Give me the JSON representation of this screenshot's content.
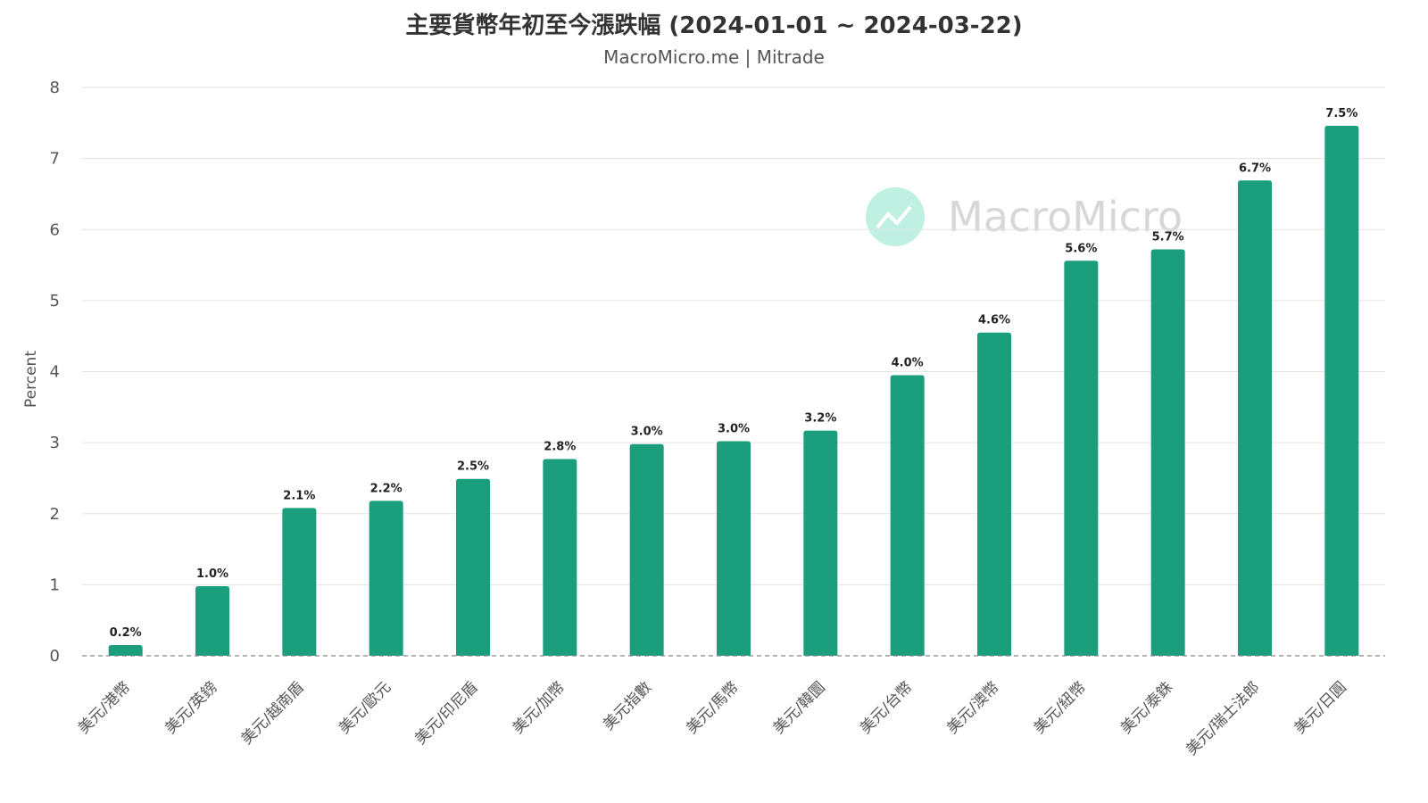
{
  "colors": {
    "bar": "#1a9e7c",
    "grid": "#e3e3e3",
    "baseline": "#888888",
    "watermark_circle": "#bff0e2"
  },
  "watermark": {
    "text": "MacroMicro",
    "icon": "chart-line-icon"
  },
  "chart_data": {
    "type": "bar",
    "title": "主要貨幣年初至今漲跌幅 (2024-01-01 ~ 2024-03-22)",
    "subtitle": "MacroMicro.me | Mitrade",
    "xlabel": "",
    "ylabel": "Percent",
    "ylim": [
      0,
      8
    ],
    "yticks": [
      "0",
      "1",
      "2",
      "3",
      "4",
      "5",
      "6",
      "7",
      "8"
    ],
    "grid": true,
    "categories": [
      "美元/港幣",
      "美元/英鎊",
      "美元/越南盾",
      "美元/歐元",
      "美元/印尼盾",
      "美元/加幣",
      "美元指數",
      "美元/馬幣",
      "美元/韓圜",
      "美元/台幣",
      "美元/澳幣",
      "美元/紐幣",
      "美元/泰銖",
      "美元/瑞士法郎",
      "美元/日圓"
    ],
    "values": [
      0.15,
      0.98,
      2.08,
      2.18,
      2.49,
      2.77,
      2.98,
      3.02,
      3.17,
      3.95,
      4.55,
      5.56,
      5.72,
      6.69,
      7.46
    ],
    "data_labels": [
      "0.2%",
      "1.0%",
      "2.1%",
      "2.2%",
      "2.5%",
      "2.8%",
      "3.0%",
      "3.0%",
      "3.2%",
      "4.0%",
      "4.6%",
      "5.6%",
      "5.7%",
      "6.7%",
      "7.5%"
    ]
  }
}
